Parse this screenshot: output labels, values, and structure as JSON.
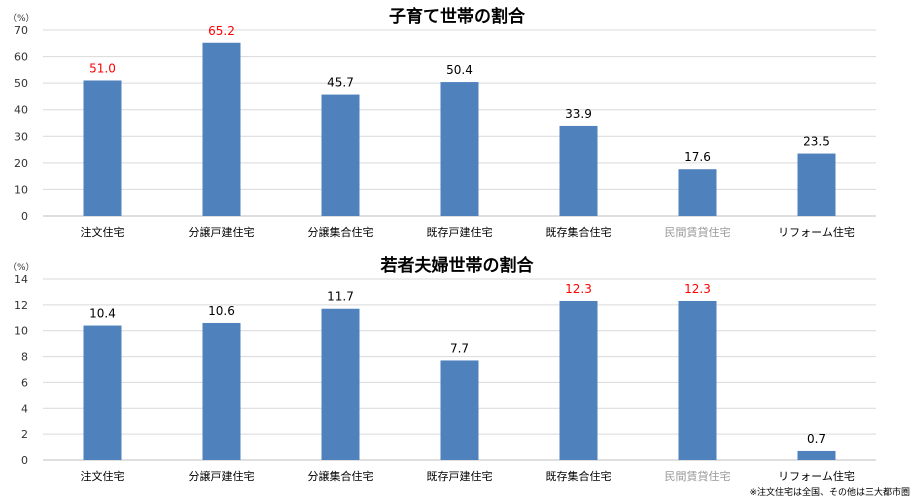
{
  "chart_data": [
    {
      "type": "bar",
      "title": "子育て世帯の割合",
      "unit": "（%）",
      "ylim": [
        0,
        70
      ],
      "yticks": [
        0,
        10,
        20,
        30,
        40,
        50,
        60,
        70
      ],
      "grid": true,
      "categories": [
        "注文住宅",
        "分譲戸建住宅",
        "分譲集合住宅",
        "既存戸建住宅",
        "既存集合住宅",
        "民間賃貸住宅",
        "リフォーム住宅"
      ],
      "values": [
        51.0,
        65.2,
        45.7,
        50.4,
        33.9,
        17.6,
        23.5
      ],
      "value_labels": [
        "51.0",
        "65.2",
        "45.7",
        "50.4",
        "33.9",
        "17.6",
        "23.5"
      ],
      "highlight": [
        true,
        true,
        false,
        false,
        false,
        false,
        false
      ],
      "category_gray": [
        false,
        false,
        false,
        false,
        false,
        true,
        false
      ]
    },
    {
      "type": "bar",
      "title": "若者夫婦世帯の割合",
      "unit": "（%）",
      "ylim": [
        0,
        14
      ],
      "yticks": [
        0,
        2,
        4,
        6,
        8,
        10,
        12,
        14
      ],
      "grid": true,
      "categories": [
        "注文住宅",
        "分譲戸建住宅",
        "分譲集合住宅",
        "既存戸建住宅",
        "既存集合住宅",
        "民間賃貸住宅",
        "リフォーム住宅"
      ],
      "values": [
        10.4,
        10.6,
        11.7,
        7.7,
        12.3,
        12.3,
        0.7
      ],
      "value_labels": [
        "10.4",
        "10.6",
        "11.7",
        "7.7",
        "12.3",
        "12.3",
        "0.7"
      ],
      "highlight": [
        false,
        false,
        false,
        false,
        true,
        true,
        false
      ],
      "category_gray": [
        false,
        false,
        false,
        false,
        false,
        true,
        false
      ]
    }
  ],
  "footnote": "※注文住宅は全国、その他は三大都市圏",
  "colors": {
    "bar": "#4f81bd",
    "highlight_label": "#ff0000",
    "normal_label": "#000000",
    "grid": "#d9d9d9",
    "axis": "#bfbfbf"
  }
}
